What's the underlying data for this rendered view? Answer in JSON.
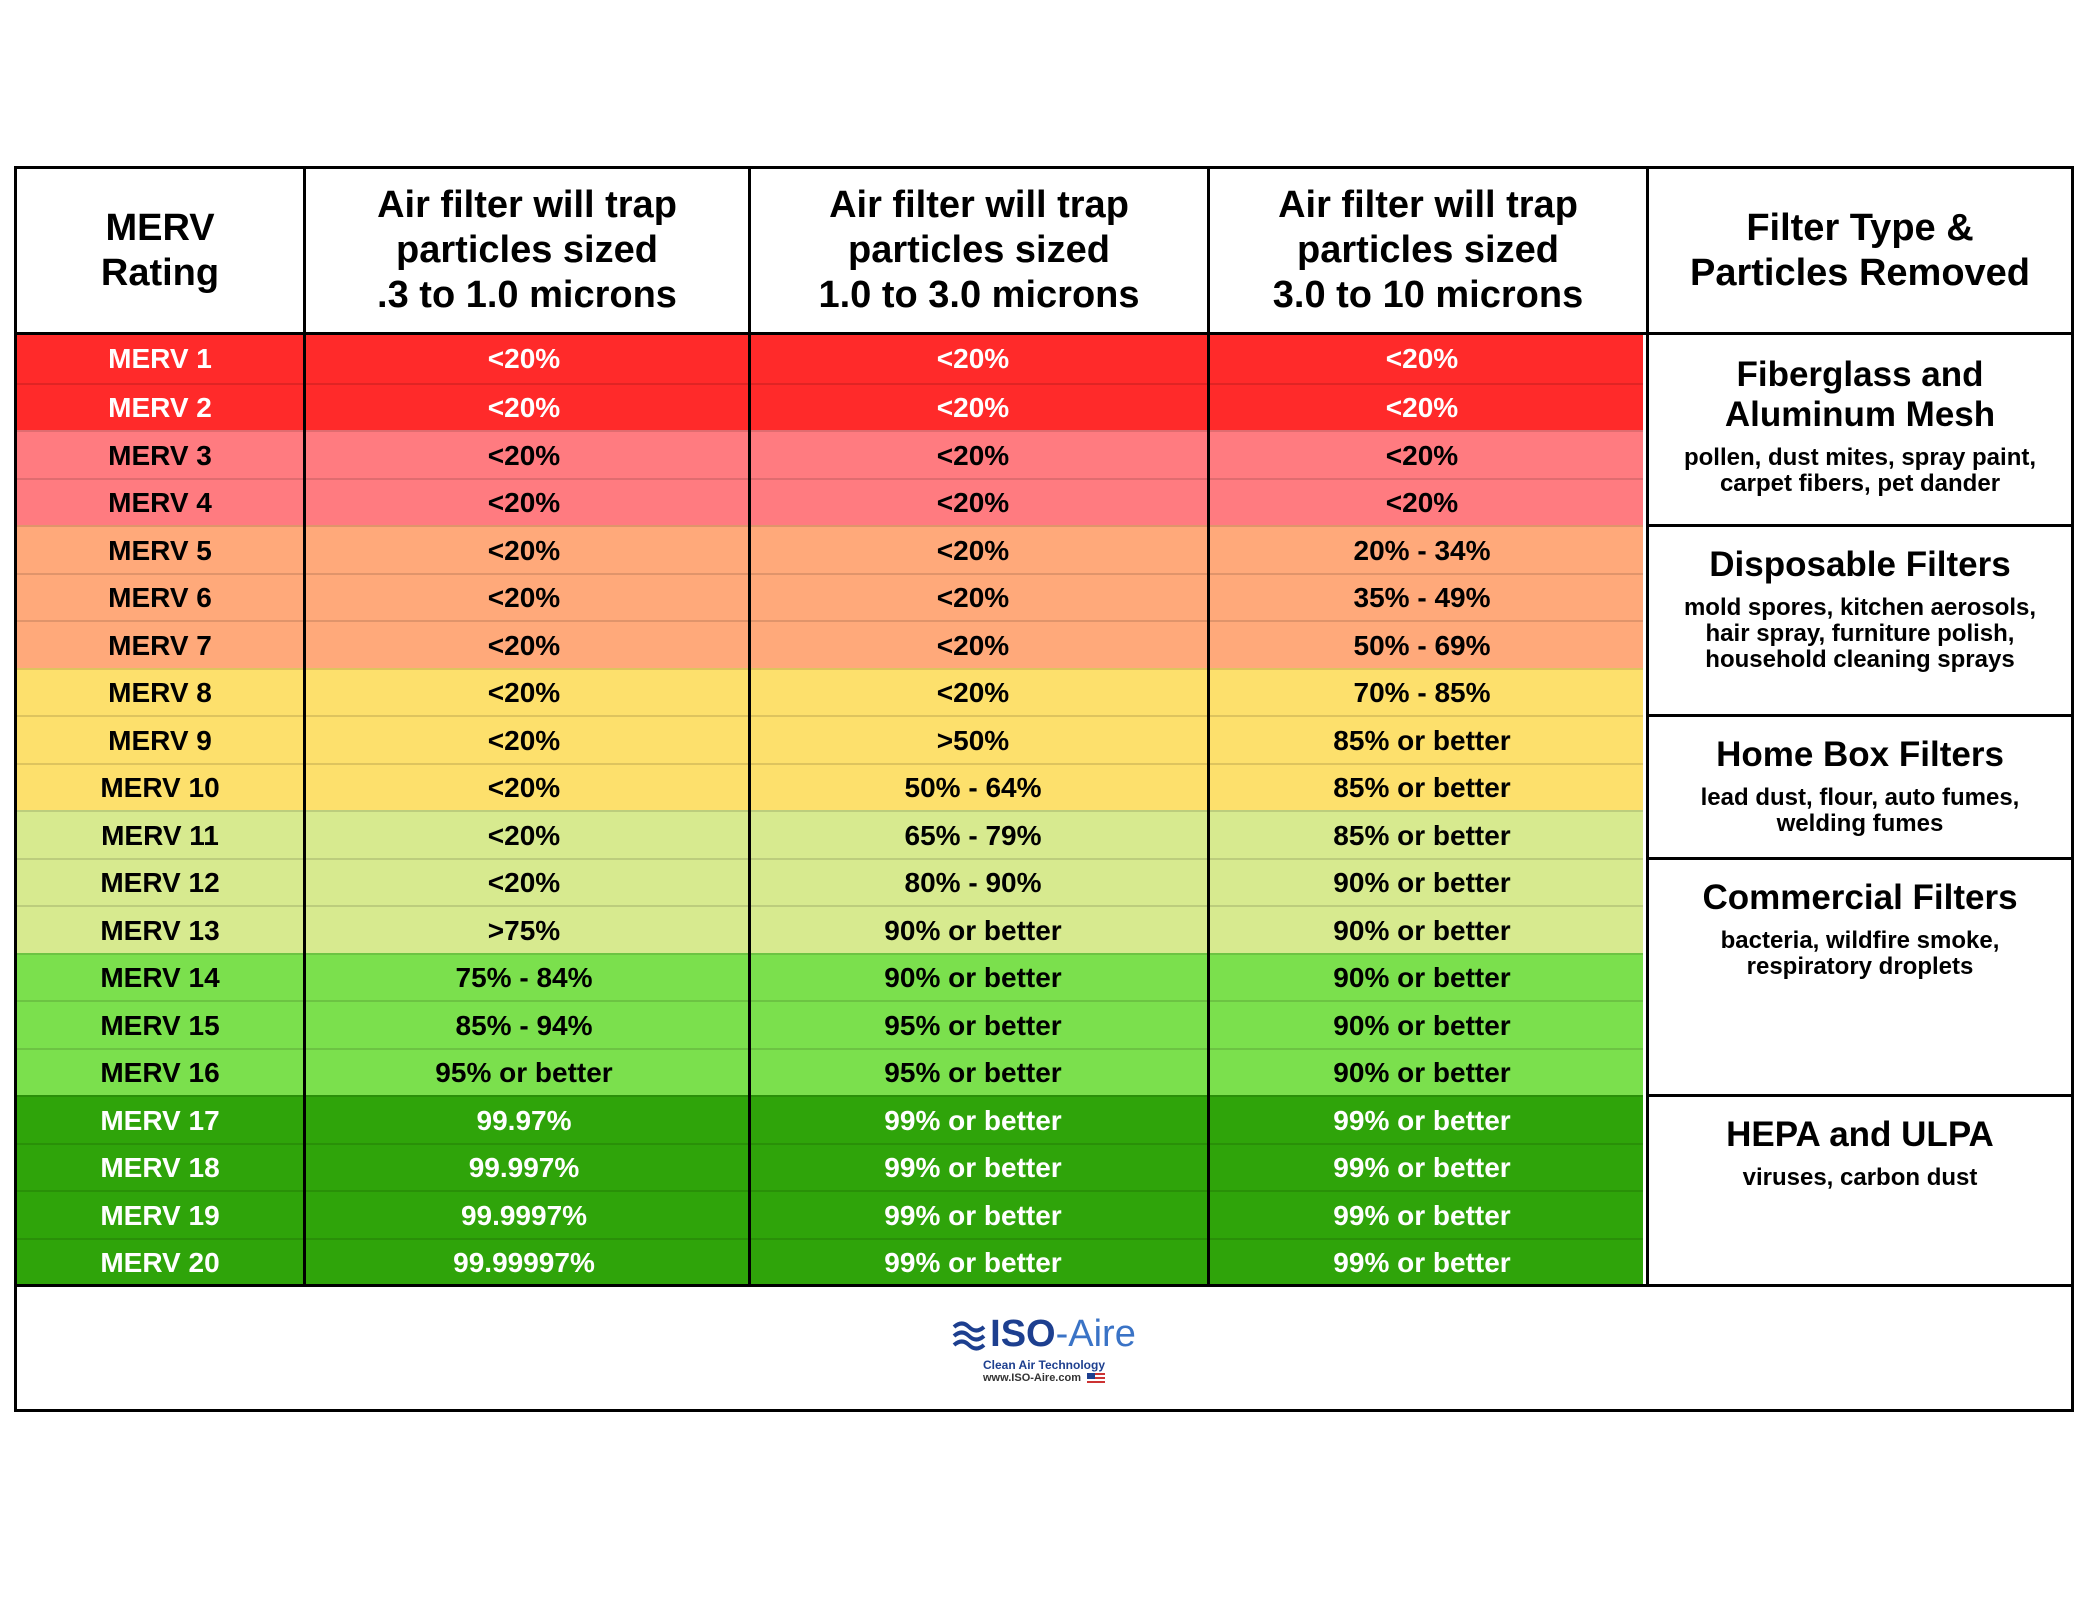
{
  "headers": [
    "MERV\nRating",
    "Air filter will trap\nparticles sized\n.3 to 1.0 microns",
    "Air filter will trap\nparticles sized\n1.0 to 3.0 microns",
    "Air filter will trap\nparticles sized\n3.0 to 10 microns",
    "Filter Type &\nParticles Removed"
  ],
  "rows": [
    {
      "rating": "MERV 1",
      "r1": "<20%",
      "r2": "<20%",
      "r3": "<20%",
      "bg": "#ff2a2a",
      "fg": "#ffffff"
    },
    {
      "rating": "MERV 2",
      "r1": "<20%",
      "r2": "<20%",
      "r3": "<20%",
      "bg": "#ff2a2a",
      "fg": "#ffffff"
    },
    {
      "rating": "MERV 3",
      "r1": "<20%",
      "r2": "<20%",
      "r3": "<20%",
      "bg": "#ff7b80",
      "fg": "#000000"
    },
    {
      "rating": "MERV 4",
      "r1": "<20%",
      "r2": "<20%",
      "r3": "<20%",
      "bg": "#ff7b80",
      "fg": "#000000"
    },
    {
      "rating": "MERV 5",
      "r1": "<20%",
      "r2": "<20%",
      "r3": "20% - 34%",
      "bg": "#ffa97a",
      "fg": "#000000"
    },
    {
      "rating": "MERV 6",
      "r1": "<20%",
      "r2": "<20%",
      "r3": "35% - 49%",
      "bg": "#ffa97a",
      "fg": "#000000"
    },
    {
      "rating": "MERV 7",
      "r1": "<20%",
      "r2": "<20%",
      "r3": "50% - 69%",
      "bg": "#ffa97a",
      "fg": "#000000"
    },
    {
      "rating": "MERV 8",
      "r1": "<20%",
      "r2": "<20%",
      "r3": "70% - 85%",
      "bg": "#fde06c",
      "fg": "#000000"
    },
    {
      "rating": "MERV 9",
      "r1": "<20%",
      "r2": ">50%",
      "r3": "85% or better",
      "bg": "#fde06c",
      "fg": "#000000"
    },
    {
      "rating": "MERV 10",
      "r1": "<20%",
      "r2": "50% - 64%",
      "r3": "85% or better",
      "bg": "#fde06c",
      "fg": "#000000"
    },
    {
      "rating": "MERV 11",
      "r1": "<20%",
      "r2": "65% - 79%",
      "r3": "85% or better",
      "bg": "#d7ea8f",
      "fg": "#000000"
    },
    {
      "rating": "MERV 12",
      "r1": "<20%",
      "r2": "80% - 90%",
      "r3": "90% or better",
      "bg": "#d7ea8f",
      "fg": "#000000"
    },
    {
      "rating": "MERV 13",
      "r1": ">75%",
      "r2": "90% or better",
      "r3": "90% or better",
      "bg": "#d7ea8f",
      "fg": "#000000"
    },
    {
      "rating": "MERV 14",
      "r1": "75% - 84%",
      "r2": "90% or better",
      "r3": "90% or better",
      "bg": "#7be04d",
      "fg": "#000000"
    },
    {
      "rating": "MERV 15",
      "r1": "85% - 94%",
      "r2": "95% or better",
      "r3": "90% or better",
      "bg": "#7be04d",
      "fg": "#000000"
    },
    {
      "rating": "MERV 16",
      "r1": "95% or better",
      "r2": "95% or better",
      "r3": "90% or better",
      "bg": "#7be04d",
      "fg": "#000000"
    },
    {
      "rating": "MERV 17",
      "r1": "99.97%",
      "r2": "99% or better",
      "r3": "99% or better",
      "bg": "#2fa40a",
      "fg": "#ffffff"
    },
    {
      "rating": "MERV 18",
      "r1": "99.997%",
      "r2": "99% or better",
      "r3": "99% or better",
      "bg": "#2fa40a",
      "fg": "#ffffff"
    },
    {
      "rating": "MERV 19",
      "r1": "99.9997%",
      "r2": "99% or better",
      "r3": "99% or better",
      "bg": "#2fa40a",
      "fg": "#ffffff"
    },
    {
      "rating": "MERV 20",
      "r1": "99.99997%",
      "r2": "99% or better",
      "r3": "99% or better",
      "bg": "#2fa40a",
      "fg": "#ffffff"
    }
  ],
  "filter_types": [
    {
      "title": "Fiberglass and\nAluminum Mesh",
      "desc": "pollen, dust mites, spray paint,\ncarpet fibers, pet dander",
      "start_row": 0,
      "end_row": 3
    },
    {
      "title": "Disposable Filters",
      "desc": "mold spores, kitchen aerosols,\nhair spray, furniture polish,\nhousehold cleaning sprays",
      "start_row": 4,
      "end_row": 7
    },
    {
      "title": "Home Box Filters",
      "desc": "lead dust, flour, auto fumes,\nwelding fumes",
      "start_row": 8,
      "end_row": 10
    },
    {
      "title": "Commercial Filters",
      "desc": "bacteria, wildfire smoke,\nrespiratory droplets",
      "start_row": 11,
      "end_row": 15
    },
    {
      "title": "HEPA and ULPA",
      "desc": "viruses, carbon dust",
      "start_row": 16,
      "end_row": 19
    }
  ],
  "logo": {
    "brand_bold": "ISO",
    "brand_light": "-Aire",
    "tagline": "Clean Air Technology",
    "url": "www.ISO-Aire.com",
    "color": "#1d3f8f"
  }
}
